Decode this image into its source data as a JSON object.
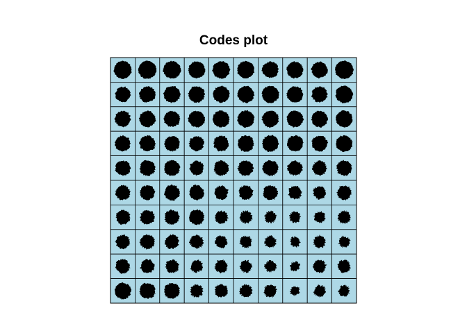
{
  "chart_data": {
    "type": "heatmap",
    "title": "Codes plot",
    "grid": {
      "columns": 10,
      "rows": 10
    },
    "cell_fill": "#add8e6",
    "glyph_fill": "#000000",
    "border_color": "#000000",
    "node_codes": [
      [
        0.92,
        0.93,
        0.91,
        0.88,
        0.9,
        0.89,
        0.86,
        0.87,
        0.85,
        0.94
      ],
      [
        0.82,
        0.85,
        0.88,
        0.86,
        0.87,
        0.88,
        0.89,
        0.86,
        0.84,
        0.9
      ],
      [
        0.84,
        0.86,
        0.85,
        0.87,
        0.88,
        0.89,
        0.88,
        0.87,
        0.86,
        0.88
      ],
      [
        0.83,
        0.84,
        0.82,
        0.8,
        0.82,
        0.86,
        0.87,
        0.85,
        0.84,
        0.86
      ],
      [
        0.82,
        0.83,
        0.84,
        0.78,
        0.8,
        0.82,
        0.84,
        0.8,
        0.78,
        0.82
      ],
      [
        0.8,
        0.81,
        0.82,
        0.8,
        0.76,
        0.78,
        0.8,
        0.74,
        0.72,
        0.78
      ],
      [
        0.78,
        0.79,
        0.8,
        0.82,
        0.72,
        0.7,
        0.66,
        0.62,
        0.64,
        0.7
      ],
      [
        0.76,
        0.78,
        0.77,
        0.74,
        0.7,
        0.68,
        0.66,
        0.58,
        0.68,
        0.64
      ],
      [
        0.78,
        0.76,
        0.74,
        0.7,
        0.72,
        0.68,
        0.64,
        0.56,
        0.72,
        0.7
      ],
      [
        0.86,
        0.84,
        0.84,
        0.7,
        0.72,
        0.7,
        0.72,
        0.56,
        0.66,
        0.62
      ]
    ]
  }
}
